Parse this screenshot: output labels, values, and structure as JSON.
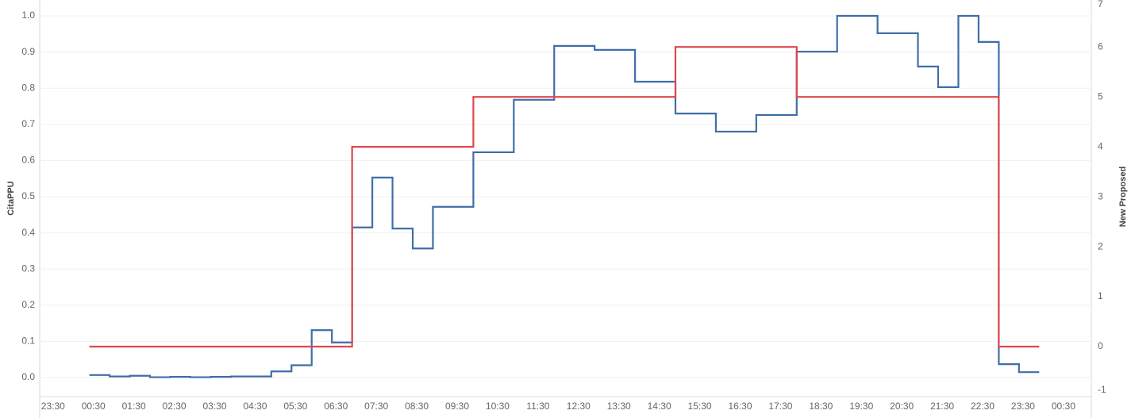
{
  "chart_data": {
    "type": "line",
    "step": true,
    "y_label": "CitaPPU",
    "y2_label": "New Proposed",
    "xlim": [
      -0.83,
      25.19
    ],
    "xticks": [
      {
        "value": -0.5,
        "label": "23:30"
      },
      {
        "value": 0.5,
        "label": "00:30"
      },
      {
        "value": 1.5,
        "label": "01:30"
      },
      {
        "value": 2.5,
        "label": "02:30"
      },
      {
        "value": 3.5,
        "label": "03:30"
      },
      {
        "value": 4.5,
        "label": "04:30"
      },
      {
        "value": 5.5,
        "label": "05:30"
      },
      {
        "value": 6.5,
        "label": "06:30"
      },
      {
        "value": 7.5,
        "label": "07:30"
      },
      {
        "value": 8.5,
        "label": "08:30"
      },
      {
        "value": 9.5,
        "label": "09:30"
      },
      {
        "value": 10.5,
        "label": "10:30"
      },
      {
        "value": 11.5,
        "label": "11:30"
      },
      {
        "value": 12.5,
        "label": "12:30"
      },
      {
        "value": 13.5,
        "label": "13:30"
      },
      {
        "value": 14.5,
        "label": "14:30"
      },
      {
        "value": 15.5,
        "label": "15:30"
      },
      {
        "value": 16.5,
        "label": "16:30"
      },
      {
        "value": 17.5,
        "label": "17:30"
      },
      {
        "value": 18.5,
        "label": "18:30"
      },
      {
        "value": 19.5,
        "label": "19:30"
      },
      {
        "value": 20.5,
        "label": "20:30"
      },
      {
        "value": 21.5,
        "label": "21:30"
      },
      {
        "value": 22.5,
        "label": "22:30"
      },
      {
        "value": 23.5,
        "label": "23:30"
      },
      {
        "value": 24.5,
        "label": "00:30"
      }
    ],
    "ylim": [
      -0.0526,
      1.0439
    ],
    "yticks": [
      {
        "value": 0,
        "label": "0.0"
      },
      0.1,
      0.2,
      0.3,
      0.4,
      0.5,
      0.6,
      0.7,
      0.8,
      0.9,
      {
        "value": 1,
        "label": "1.0"
      }
    ],
    "y2lim": [
      -1,
      6.94
    ],
    "y2ticks": [
      -1,
      0,
      1,
      2,
      3,
      4,
      5,
      6,
      7
    ],
    "grid": true,
    "series": [
      {
        "color": "#3f6ea8",
        "x": [
          0.4,
          0.9,
          1.4,
          1.9,
          2.4,
          2.9,
          3.4,
          3.9,
          4.4,
          4.9,
          5.4,
          5.9,
          6.4,
          6.9,
          7.4,
          7.9,
          8.4,
          8.9,
          9.4,
          9.9,
          10.4,
          10.9,
          11.4,
          11.9,
          12.4,
          12.9,
          13.4,
          13.9,
          14.4,
          14.9,
          15.4,
          15.9,
          16.4,
          16.9,
          17.4,
          17.9,
          18.4,
          18.9,
          19.4,
          19.9,
          20.4,
          20.9,
          21.4,
          21.9,
          22.4,
          22.9,
          23.4,
          23.9
        ],
        "values": [
          0.007,
          0.003,
          0.005,
          0.001,
          0.002,
          0.001,
          0.002,
          0.003,
          0.003,
          0.017,
          0.034,
          0.131,
          0.097,
          0.415,
          0.553,
          0.412,
          0.357,
          0.472,
          0.472,
          0.623,
          0.623,
          0.768,
          0.768,
          0.917,
          0.917,
          0.906,
          0.906,
          0.818,
          0.818,
          0.73,
          0.73,
          0.68,
          0.68,
          0.726,
          0.726,
          0.901,
          0.901,
          1.0,
          1.0,
          0.952,
          0.952,
          0.86,
          0.803,
          1.0,
          0.928,
          0.037,
          0.015,
          0.015
        ]
      },
      {
        "color": "#e0474c",
        "axis": "y2",
        "x": [
          0.4,
          6.9,
          9.9,
          14.9,
          17.9,
          22.9,
          23.9
        ],
        "values": [
          0,
          4,
          5,
          6,
          5,
          0,
          0
        ]
      }
    ]
  }
}
